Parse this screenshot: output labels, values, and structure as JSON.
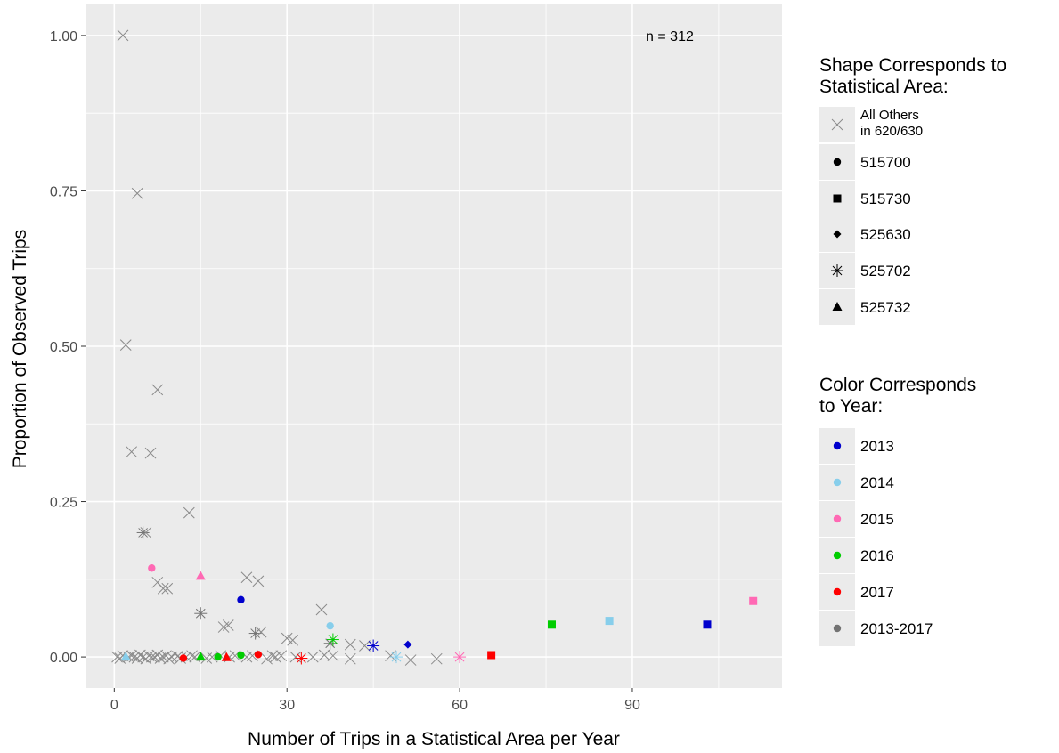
{
  "chart_data": {
    "type": "scatter",
    "xlabel": "Number of Trips in a Statistical Area per Year",
    "ylabel": "Proportion of Observed Trips",
    "xlim": [
      -5,
      116
    ],
    "ylim": [
      -0.05,
      1.05
    ],
    "x_ticks": [
      0,
      30,
      60,
      90
    ],
    "x_tick_labels": [
      "0",
      "30",
      "60",
      "90"
    ],
    "y_ticks": [
      0,
      0.25,
      0.5,
      0.75,
      1.0
    ],
    "y_tick_labels": [
      "0.00",
      "0.25",
      "0.50",
      "0.75",
      "1.00"
    ],
    "grid": true,
    "annotation": {
      "text": "n =  312",
      "x": 96.5,
      "y": 1.0
    },
    "legend_position": "right",
    "shape_legend": {
      "title_lines": [
        "Shape Corresponds to",
        "Statistical Area:"
      ],
      "items": [
        {
          "key": "others",
          "shape": "cross",
          "label_lines": [
            "All Others",
            "in 620/630"
          ]
        },
        {
          "key": "515700",
          "shape": "circle",
          "label_lines": [
            "515700"
          ]
        },
        {
          "key": "515730",
          "shape": "square",
          "label_lines": [
            "515730"
          ]
        },
        {
          "key": "525630",
          "shape": "diamond",
          "label_lines": [
            "525630"
          ]
        },
        {
          "key": "525702",
          "shape": "asterisk",
          "label_lines": [
            "525702"
          ]
        },
        {
          "key": "525732",
          "shape": "triangle",
          "label_lines": [
            "525732"
          ]
        }
      ]
    },
    "color_legend": {
      "title_lines": [
        "Color Corresponds",
        "to Year:"
      ],
      "items": [
        {
          "key": "2013",
          "label": "2013",
          "color": "#0000cd"
        },
        {
          "key": "2014",
          "label": "2014",
          "color": "#87ceeb"
        },
        {
          "key": "2015",
          "label": "2015",
          "color": "#ff69b4"
        },
        {
          "key": "2016",
          "label": "2016",
          "color": "#00cd00"
        },
        {
          "key": "2017",
          "label": "2017",
          "color": "#ff0000"
        },
        {
          "key": "2013-2017",
          "label": "2013-2017",
          "color": "#737373"
        }
      ]
    },
    "colored_points": [
      {
        "x": 22,
        "y": 0.092,
        "shape": "circle",
        "year": "2013"
      },
      {
        "x": 51,
        "y": 0.02,
        "shape": "diamond",
        "year": "2013"
      },
      {
        "x": 45,
        "y": 0.018,
        "shape": "asterisk",
        "year": "2013"
      },
      {
        "x": 103,
        "y": 0.052,
        "shape": "square",
        "year": "2013"
      },
      {
        "x": 37.5,
        "y": 0.05,
        "shape": "circle",
        "year": "2014"
      },
      {
        "x": 86,
        "y": 0.058,
        "shape": "square",
        "year": "2014"
      },
      {
        "x": 49,
        "y": 0.0,
        "shape": "asterisk",
        "year": "2014"
      },
      {
        "x": 2,
        "y": 0.0,
        "shape": "triangle",
        "year": "2014"
      },
      {
        "x": 6.5,
        "y": 0.143,
        "shape": "circle",
        "year": "2015"
      },
      {
        "x": 15,
        "y": 0.13,
        "shape": "triangle",
        "year": "2015"
      },
      {
        "x": 111,
        "y": 0.09,
        "shape": "square",
        "year": "2015"
      },
      {
        "x": 60,
        "y": 0.0,
        "shape": "asterisk",
        "year": "2015"
      },
      {
        "x": 76,
        "y": 0.052,
        "shape": "square",
        "year": "2016"
      },
      {
        "x": 38,
        "y": 0.028,
        "shape": "asterisk",
        "year": "2016"
      },
      {
        "x": 22,
        "y": 0.003,
        "shape": "circle",
        "year": "2016"
      },
      {
        "x": 15,
        "y": 0.0,
        "shape": "triangle",
        "year": "2016"
      },
      {
        "x": 18,
        "y": 0.0,
        "shape": "circle",
        "year": "2016"
      },
      {
        "x": 65.5,
        "y": 0.003,
        "shape": "square",
        "year": "2017"
      },
      {
        "x": 25,
        "y": 0.004,
        "shape": "circle",
        "year": "2017"
      },
      {
        "x": 32.5,
        "y": -0.002,
        "shape": "asterisk",
        "year": "2017"
      },
      {
        "x": 12,
        "y": -0.002,
        "shape": "circle",
        "year": "2017"
      },
      {
        "x": 19.5,
        "y": -0.001,
        "shape": "triangle",
        "year": "2017"
      }
    ],
    "grey_points": [
      {
        "x": 1.5,
        "y": 1.0,
        "shape": "cross"
      },
      {
        "x": 4,
        "y": 0.746,
        "shape": "cross"
      },
      {
        "x": 2,
        "y": 0.502,
        "shape": "cross"
      },
      {
        "x": 7.5,
        "y": 0.43,
        "shape": "cross"
      },
      {
        "x": 3,
        "y": 0.33,
        "shape": "cross"
      },
      {
        "x": 6.3,
        "y": 0.328,
        "shape": "cross"
      },
      {
        "x": 13,
        "y": 0.232,
        "shape": "cross"
      },
      {
        "x": 5,
        "y": 0.2,
        "shape": "asterisk"
      },
      {
        "x": 5.5,
        "y": 0.2,
        "shape": "cross"
      },
      {
        "x": 23,
        "y": 0.128,
        "shape": "cross"
      },
      {
        "x": 25,
        "y": 0.122,
        "shape": "cross"
      },
      {
        "x": 7.5,
        "y": 0.12,
        "shape": "cross"
      },
      {
        "x": 8.5,
        "y": 0.11,
        "shape": "cross"
      },
      {
        "x": 9.2,
        "y": 0.11,
        "shape": "cross"
      },
      {
        "x": 36,
        "y": 0.076,
        "shape": "cross"
      },
      {
        "x": 15,
        "y": 0.07,
        "shape": "asterisk"
      },
      {
        "x": 19,
        "y": 0.048,
        "shape": "cross"
      },
      {
        "x": 19.8,
        "y": 0.051,
        "shape": "cross"
      },
      {
        "x": 24.5,
        "y": 0.038,
        "shape": "asterisk"
      },
      {
        "x": 25.5,
        "y": 0.04,
        "shape": "cross"
      },
      {
        "x": 30,
        "y": 0.03,
        "shape": "cross"
      },
      {
        "x": 31,
        "y": 0.027,
        "shape": "cross"
      },
      {
        "x": 37.5,
        "y": 0.022,
        "shape": "asterisk"
      },
      {
        "x": 41,
        "y": 0.02,
        "shape": "cross"
      },
      {
        "x": 43.5,
        "y": 0.018,
        "shape": "cross"
      },
      {
        "x": 48,
        "y": 0.002,
        "shape": "cross"
      },
      {
        "x": 51.5,
        "y": -0.005,
        "shape": "cross"
      },
      {
        "x": 56,
        "y": -0.003,
        "shape": "cross"
      },
      {
        "x": 41,
        "y": -0.003,
        "shape": "cross"
      },
      {
        "x": 38,
        "y": 0.002,
        "shape": "cross"
      },
      {
        "x": 34.5,
        "y": 0.0,
        "shape": "cross"
      },
      {
        "x": 36.5,
        "y": 0.003,
        "shape": "cross"
      },
      {
        "x": 28,
        "y": 0.0,
        "shape": "cross"
      },
      {
        "x": 26.5,
        "y": -0.003,
        "shape": "cross"
      },
      {
        "x": 27.5,
        "y": 0.002,
        "shape": "cross"
      },
      {
        "x": 23,
        "y": 0.0,
        "shape": "cross"
      },
      {
        "x": 21,
        "y": 0.002,
        "shape": "cross"
      },
      {
        "x": 17,
        "y": 0.0,
        "shape": "cross"
      },
      {
        "x": 16,
        "y": -0.002,
        "shape": "cross"
      },
      {
        "x": 13.5,
        "y": 0.002,
        "shape": "cross"
      },
      {
        "x": 12.5,
        "y": 0.0,
        "shape": "cross"
      },
      {
        "x": 11,
        "y": 0.001,
        "shape": "cross"
      },
      {
        "x": 10,
        "y": 0.0,
        "shape": "cross"
      },
      {
        "x": 9,
        "y": 0.002,
        "shape": "cross"
      },
      {
        "x": 8,
        "y": -0.002,
        "shape": "cross"
      },
      {
        "x": 7,
        "y": 0.0,
        "shape": "cross"
      },
      {
        "x": 6,
        "y": 0.002,
        "shape": "cross"
      },
      {
        "x": 5,
        "y": 0.0,
        "shape": "cross"
      },
      {
        "x": 4,
        "y": -0.002,
        "shape": "cross"
      },
      {
        "x": 3,
        "y": 0.002,
        "shape": "cross"
      },
      {
        "x": 2.5,
        "y": 0.0,
        "shape": "cross"
      },
      {
        "x": 1.5,
        "y": 0.002,
        "shape": "cross"
      },
      {
        "x": 1,
        "y": -0.002,
        "shape": "cross"
      },
      {
        "x": 0.5,
        "y": 0.0,
        "shape": "cross"
      },
      {
        "x": 3.5,
        "y": 0.0,
        "shape": "cross"
      },
      {
        "x": 4.5,
        "y": 0.003,
        "shape": "cross"
      },
      {
        "x": 5.5,
        "y": -0.003,
        "shape": "cross"
      },
      {
        "x": 6.5,
        "y": 0.0,
        "shape": "cross"
      },
      {
        "x": 7.5,
        "y": 0.003,
        "shape": "cross"
      },
      {
        "x": 8.5,
        "y": 0.0,
        "shape": "cross"
      },
      {
        "x": 9.5,
        "y": -0.003,
        "shape": "cross"
      },
      {
        "x": 11.5,
        "y": -0.002,
        "shape": "cross"
      },
      {
        "x": 14,
        "y": 0.0,
        "shape": "cross"
      },
      {
        "x": 18.5,
        "y": 0.002,
        "shape": "cross"
      },
      {
        "x": 20,
        "y": 0.0,
        "shape": "cross"
      },
      {
        "x": 24,
        "y": 0.002,
        "shape": "cross"
      },
      {
        "x": 29,
        "y": 0.002,
        "shape": "cross"
      },
      {
        "x": 31.5,
        "y": 0.0,
        "shape": "cross"
      }
    ]
  }
}
